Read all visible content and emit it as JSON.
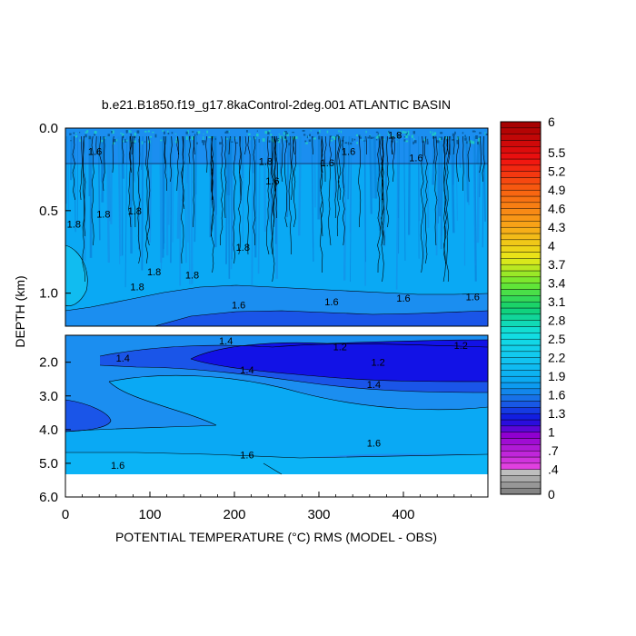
{
  "chart_data": {
    "type": "heatmap",
    "title": "b.e21.B1850.f19_g17.8kaControl-2deg.001 ATLANTIC BASIN",
    "xlabel": "POTENTIAL TEMPERATURE (°C) RMS (MODEL - OBS)",
    "ylabel": "DEPTH (km)",
    "xlim": [
      0,
      500
    ],
    "x_ticks": [
      "0",
      "100",
      "200",
      "300",
      "400"
    ],
    "x_tick_values": [
      0,
      100,
      200,
      300,
      400
    ],
    "upper_panel": {
      "ylim_km": [
        0.0,
        1.2
      ],
      "y_ticks": [
        "0.0",
        "0.5",
        "1.0"
      ],
      "y_tick_values": [
        0.0,
        0.5,
        1.0
      ]
    },
    "lower_panel": {
      "ylim_km": [
        1.2,
        6.0
      ],
      "y_ticks": [
        "2.0",
        "3.0",
        "4.0",
        "5.0",
        "6.0"
      ],
      "y_tick_values": [
        2.0,
        3.0,
        4.0,
        5.0,
        6.0
      ]
    },
    "contour_labels_upper": [
      {
        "text": "1.6",
        "x": 35,
        "y": 0.14
      },
      {
        "text": "1.8",
        "x": 10,
        "y": 0.58
      },
      {
        "text": "1.8",
        "x": 45,
        "y": 0.52
      },
      {
        "text": "1.8",
        "x": 82,
        "y": 0.5
      },
      {
        "text": "1.8",
        "x": 105,
        "y": 0.87
      },
      {
        "text": "1.8",
        "x": 150,
        "y": 0.89
      },
      {
        "text": "1.8",
        "x": 85,
        "y": 0.96
      },
      {
        "text": "1.8",
        "x": 210,
        "y": 0.72
      },
      {
        "text": "1.8",
        "x": 237,
        "y": 0.2
      },
      {
        "text": "1.6",
        "x": 245,
        "y": 0.32
      },
      {
        "text": "1.6",
        "x": 310,
        "y": 0.21
      },
      {
        "text": "1.6",
        "x": 335,
        "y": 0.14
      },
      {
        "text": "1.6",
        "x": 415,
        "y": 0.18
      },
      {
        "text": "1.8",
        "x": 390,
        "y": 0.04
      },
      {
        "text": "1.6",
        "x": 205,
        "y": 1.07
      },
      {
        "text": "1.6",
        "x": 315,
        "y": 1.05
      },
      {
        "text": "1.6",
        "x": 400,
        "y": 1.03
      },
      {
        "text": "1.6",
        "x": 482,
        "y": 1.02
      }
    ],
    "contour_labels_lower": [
      {
        "text": "1.4",
        "x": 190,
        "y": 1.36
      },
      {
        "text": "1.2",
        "x": 325,
        "y": 1.54
      },
      {
        "text": "1.2",
        "x": 468,
        "y": 1.49
      },
      {
        "text": "1.4",
        "x": 68,
        "y": 1.88
      },
      {
        "text": "1.4",
        "x": 215,
        "y": 2.22
      },
      {
        "text": "1.2",
        "x": 370,
        "y": 2.0
      },
      {
        "text": "1.4",
        "x": 365,
        "y": 2.65
      },
      {
        "text": "1.6",
        "x": 365,
        "y": 4.4
      },
      {
        "text": "1.6",
        "x": 215,
        "y": 4.75
      },
      {
        "text": "1.6",
        "x": 62,
        "y": 5.05
      }
    ],
    "colorbar": {
      "min": 0,
      "max": 6,
      "labels": [
        "6",
        "5.5",
        "5.2",
        "4.9",
        "4.6",
        "4.3",
        "4",
        "3.7",
        "3.4",
        "3.1",
        "2.8",
        "2.5",
        "2.2",
        "1.9",
        "1.6",
        "1.3",
        "1",
        ".7",
        ".4",
        "0"
      ],
      "label_values": [
        6,
        5.5,
        5.2,
        4.9,
        4.6,
        4.3,
        4.0,
        3.7,
        3.4,
        3.1,
        2.8,
        2.5,
        2.2,
        1.9,
        1.6,
        1.3,
        1.0,
        0.7,
        0.4,
        0
      ],
      "color_stops": [
        {
          "v": 0.0,
          "c": "#7a7a7a"
        },
        {
          "v": 0.4,
          "c": "#c8c8c8"
        },
        {
          "v": 0.45,
          "c": "#e040e0"
        },
        {
          "v": 0.95,
          "c": "#9000d0"
        },
        {
          "v": 1.2,
          "c": "#1010e0"
        },
        {
          "v": 1.5,
          "c": "#1a66e6"
        },
        {
          "v": 1.8,
          "c": "#0aa6f2"
        },
        {
          "v": 2.2,
          "c": "#12c7f0"
        },
        {
          "v": 2.6,
          "c": "#12e0e0"
        },
        {
          "v": 3.0,
          "c": "#10d070"
        },
        {
          "v": 3.4,
          "c": "#6ce830"
        },
        {
          "v": 3.8,
          "c": "#e8e818"
        },
        {
          "v": 4.3,
          "c": "#f8a818"
        },
        {
          "v": 4.9,
          "c": "#f86010"
        },
        {
          "v": 5.4,
          "c": "#f01010"
        },
        {
          "v": 6.0,
          "c": "#a00000"
        }
      ]
    },
    "fill_colors": {
      "level_1_2": "#1212e6",
      "level_1_4": "#1a55e8",
      "level_1_6": "#1b8ef0",
      "level_1_8": "#0aa9f4",
      "level_2_0": "#11bcf0",
      "deep_bottom": "#0cb4f6"
    }
  }
}
